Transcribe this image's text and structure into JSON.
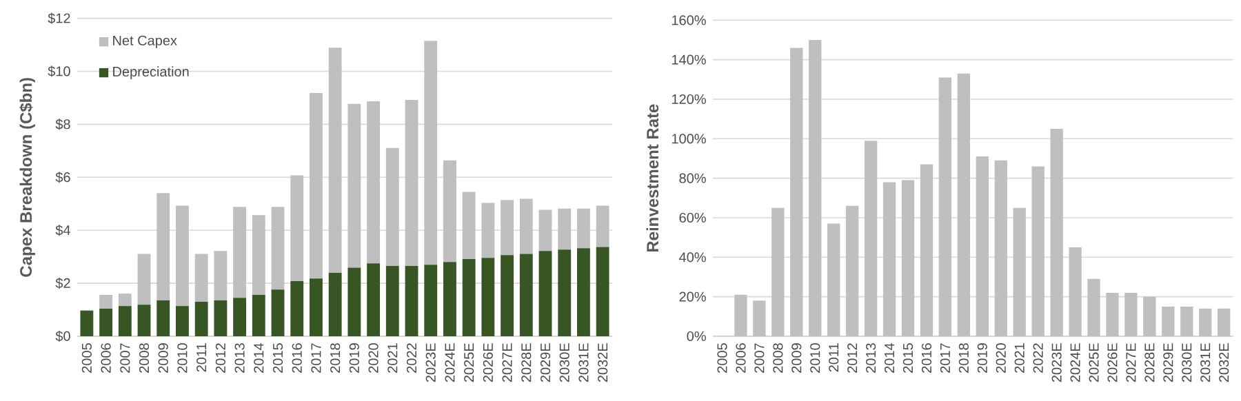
{
  "chart_data": [
    {
      "type": "bar",
      "ylabel": "Capex Breakdown (C$bn)",
      "stacked": true,
      "grid": "y",
      "legend": "top left",
      "categories": [
        "2005",
        "2006",
        "2007",
        "2008",
        "2009",
        "2010",
        "2011",
        "2012",
        "2013",
        "2014",
        "2015",
        "2016",
        "2017",
        "2018",
        "2019",
        "2020",
        "2021",
        "2022",
        "2023E",
        "2024E",
        "2025E",
        "2026E",
        "2027E",
        "2028E",
        "2029E",
        "2030E",
        "2031E",
        "2032E"
      ],
      "series": [
        {
          "name": "Depreciation",
          "color": "#375623",
          "values": [
            0.97,
            1.04,
            1.14,
            1.19,
            1.35,
            1.14,
            1.3,
            1.35,
            1.45,
            1.56,
            1.76,
            2.08,
            2.18,
            2.39,
            2.59,
            2.75,
            2.65,
            2.65,
            2.7,
            2.8,
            2.91,
            2.96,
            3.06,
            3.11,
            3.22,
            3.27,
            3.32,
            3.37
          ]
        },
        {
          "name": "Net Capex",
          "color": "#bfbfbf",
          "values": [
            0,
            0.52,
            0.47,
            1.92,
            4.05,
            3.79,
            1.81,
            1.87,
            3.43,
            3.01,
            3.12,
            3.99,
            7.0,
            8.5,
            6.18,
            6.12,
            4.46,
            6.27,
            8.45,
            3.84,
            2.54,
            2.07,
            2.08,
            2.08,
            1.55,
            1.55,
            1.5,
            1.56
          ]
        }
      ],
      "ylim": [
        0,
        12
      ],
      "yticks": [
        {
          "value": 0,
          "label": "$0"
        },
        {
          "value": 2,
          "label": "$2"
        },
        {
          "value": 4,
          "label": "$4"
        },
        {
          "value": 6,
          "label": "$6"
        },
        {
          "value": 8,
          "label": "$8"
        },
        {
          "value": 10,
          "label": "$10"
        },
        {
          "value": 12,
          "label": "$12"
        }
      ]
    },
    {
      "type": "bar",
      "ylabel": "Reinvestment Rate",
      "grid": "y",
      "categories": [
        "2005",
        "2006",
        "2007",
        "2008",
        "2009",
        "2010",
        "2011",
        "2012",
        "2013",
        "2014",
        "2015",
        "2016",
        "2017",
        "2018",
        "2019",
        "2020",
        "2021",
        "2022",
        "2023E",
        "2024E",
        "2025E",
        "2026E",
        "2027E",
        "2028E",
        "2029E",
        "2030E",
        "2031E",
        "2032E"
      ],
      "series": [
        {
          "color": "#bfbfbf",
          "values": [
            0,
            21,
            18,
            65,
            146,
            150,
            57,
            66,
            99,
            78,
            79,
            87,
            131,
            133,
            91,
            89,
            65,
            86,
            105,
            45,
            29,
            22,
            22,
            20,
            15,
            15,
            14,
            14
          ]
        }
      ],
      "ylim": [
        0,
        160
      ],
      "yticks": [
        {
          "value": 0,
          "label": "0%"
        },
        {
          "value": 20,
          "label": "20%"
        },
        {
          "value": 40,
          "label": "40%"
        },
        {
          "value": 60,
          "label": "60%"
        },
        {
          "value": 80,
          "label": "80%"
        },
        {
          "value": 100,
          "label": "100%"
        },
        {
          "value": 120,
          "label": "120%"
        },
        {
          "value": 140,
          "label": "140%"
        },
        {
          "value": 160,
          "label": "160%"
        }
      ]
    }
  ]
}
